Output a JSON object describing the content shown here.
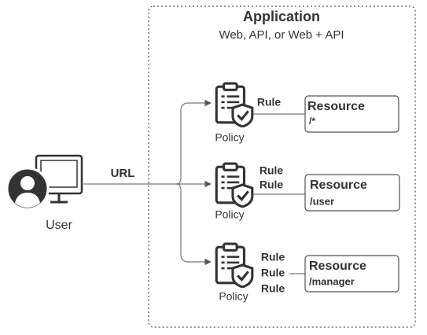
{
  "container": {
    "title": "Application",
    "subtitle": "Web, API, or Web + API"
  },
  "user": {
    "label": "User"
  },
  "edge": {
    "label": "URL"
  },
  "policies": [
    {
      "label": "Policy",
      "rules": [
        "Rule"
      ],
      "resource": {
        "title": "Resource",
        "path": "/*"
      }
    },
    {
      "label": "Policy",
      "rules": [
        "Rule",
        "Rule"
      ],
      "resource": {
        "title": "Resource",
        "path": "/user"
      }
    },
    {
      "label": "Policy",
      "rules": [
        "Rule",
        "Rule",
        "Rule"
      ],
      "resource": {
        "title": "Resource",
        "path": "/manager"
      }
    }
  ]
}
